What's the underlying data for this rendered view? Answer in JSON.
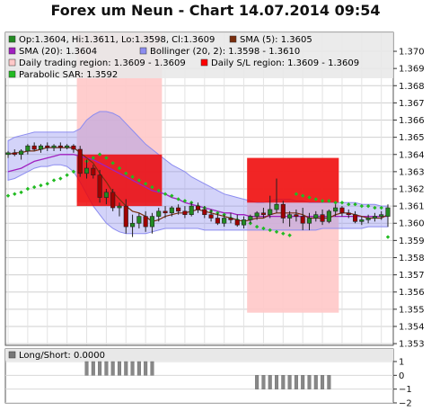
{
  "title": "Forex um Neun - Chart 14.07.2014 09:54",
  "chart_data": {
    "type": "candlestick",
    "ylim": [
      1.3529,
      1.3711
    ],
    "y_ticks": [
      "1.370",
      "1.369",
      "1.368",
      "1.367",
      "1.366",
      "1.365",
      "1.364",
      "1.363",
      "1.362",
      "1.361",
      "1.360",
      "1.359",
      "1.358",
      "1.357",
      "1.356",
      "1.355",
      "1.354",
      "1.353"
    ],
    "grid": true,
    "legend": [
      {
        "label": "Op:1.3604, Hi:1.3611, Lo:1.3598, Cl:1.3609",
        "color": "#228b22"
      },
      {
        "label": "SMA (5): 1.3605",
        "color": "#7a2e0e"
      },
      {
        "label": "SMA (20): 1.3604",
        "color": "#a020c0"
      },
      {
        "label": "Bollinger (20, 2): 1.3598 - 1.3610",
        "color": "#8c8cf0"
      },
      {
        "label": "Daily trading region: 1.3609 - 1.3609",
        "color": "#ffc8c8"
      },
      {
        "label": "Daily S/L region: 1.3609 - 1.3609",
        "color": "#ff0000"
      },
      {
        "label": "Parabolic SAR: 1.3592",
        "color": "#22bb22"
      }
    ],
    "candles": [
      {
        "o": 1.364,
        "h": 1.3642,
        "l": 1.3638,
        "c": 1.3641
      },
      {
        "o": 1.3641,
        "h": 1.3643,
        "l": 1.3639,
        "c": 1.364
      },
      {
        "o": 1.364,
        "h": 1.3643,
        "l": 1.3637,
        "c": 1.3642
      },
      {
        "o": 1.3642,
        "h": 1.3646,
        "l": 1.364,
        "c": 1.3645
      },
      {
        "o": 1.3645,
        "h": 1.3647,
        "l": 1.3642,
        "c": 1.3643
      },
      {
        "o": 1.3643,
        "h": 1.3646,
        "l": 1.3641,
        "c": 1.3645
      },
      {
        "o": 1.3645,
        "h": 1.3647,
        "l": 1.3642,
        "c": 1.3644
      },
      {
        "o": 1.3644,
        "h": 1.3646,
        "l": 1.3642,
        "c": 1.3645
      },
      {
        "o": 1.3645,
        "h": 1.3647,
        "l": 1.3642,
        "c": 1.3644
      },
      {
        "o": 1.3644,
        "h": 1.3646,
        "l": 1.3643,
        "c": 1.3645
      },
      {
        "o": 1.3645,
        "h": 1.3646,
        "l": 1.3641,
        "c": 1.3643
      },
      {
        "o": 1.3643,
        "h": 1.3645,
        "l": 1.3627,
        "c": 1.3629
      },
      {
        "o": 1.3629,
        "h": 1.3637,
        "l": 1.3626,
        "c": 1.3632
      },
      {
        "o": 1.3632,
        "h": 1.3634,
        "l": 1.3626,
        "c": 1.3628
      },
      {
        "o": 1.3628,
        "h": 1.3631,
        "l": 1.3612,
        "c": 1.3615
      },
      {
        "o": 1.3615,
        "h": 1.362,
        "l": 1.3611,
        "c": 1.3618
      },
      {
        "o": 1.3618,
        "h": 1.362,
        "l": 1.3607,
        "c": 1.3609
      },
      {
        "o": 1.3609,
        "h": 1.3612,
        "l": 1.3604,
        "c": 1.361
      },
      {
        "o": 1.361,
        "h": 1.3614,
        "l": 1.3594,
        "c": 1.3598
      },
      {
        "o": 1.3598,
        "h": 1.3605,
        "l": 1.3592,
        "c": 1.36
      },
      {
        "o": 1.36,
        "h": 1.3606,
        "l": 1.3597,
        "c": 1.3604
      },
      {
        "o": 1.3604,
        "h": 1.3607,
        "l": 1.3595,
        "c": 1.3598
      },
      {
        "o": 1.3598,
        "h": 1.3606,
        "l": 1.3594,
        "c": 1.3604
      },
      {
        "o": 1.3604,
        "h": 1.3609,
        "l": 1.3601,
        "c": 1.3607
      },
      {
        "o": 1.3607,
        "h": 1.361,
        "l": 1.3603,
        "c": 1.3606
      },
      {
        "o": 1.3606,
        "h": 1.361,
        "l": 1.3604,
        "c": 1.3609
      },
      {
        "o": 1.3609,
        "h": 1.3611,
        "l": 1.3605,
        "c": 1.3607
      },
      {
        "o": 1.3607,
        "h": 1.361,
        "l": 1.3603,
        "c": 1.3605
      },
      {
        "o": 1.3605,
        "h": 1.3612,
        "l": 1.3604,
        "c": 1.361
      },
      {
        "o": 1.361,
        "h": 1.3612,
        "l": 1.3606,
        "c": 1.3608
      },
      {
        "o": 1.3608,
        "h": 1.361,
        "l": 1.3603,
        "c": 1.3605
      },
      {
        "o": 1.3605,
        "h": 1.3608,
        "l": 1.3601,
        "c": 1.3603
      },
      {
        "o": 1.3603,
        "h": 1.3606,
        "l": 1.3599,
        "c": 1.36
      },
      {
        "o": 1.36,
        "h": 1.3605,
        "l": 1.3598,
        "c": 1.3603
      },
      {
        "o": 1.3603,
        "h": 1.3606,
        "l": 1.36,
        "c": 1.3602
      },
      {
        "o": 1.3602,
        "h": 1.3605,
        "l": 1.3598,
        "c": 1.3599
      },
      {
        "o": 1.3599,
        "h": 1.3604,
        "l": 1.3597,
        "c": 1.3602
      },
      {
        "o": 1.3602,
        "h": 1.3605,
        "l": 1.36,
        "c": 1.3604
      },
      {
        "o": 1.3604,
        "h": 1.3607,
        "l": 1.3602,
        "c": 1.3606
      },
      {
        "o": 1.3606,
        "h": 1.3609,
        "l": 1.3603,
        "c": 1.3605
      },
      {
        "o": 1.3605,
        "h": 1.3616,
        "l": 1.3603,
        "c": 1.3608
      },
      {
        "o": 1.3608,
        "h": 1.3626,
        "l": 1.3606,
        "c": 1.3611
      },
      {
        "o": 1.3611,
        "h": 1.3613,
        "l": 1.36,
        "c": 1.3603
      },
      {
        "o": 1.3603,
        "h": 1.3607,
        "l": 1.3598,
        "c": 1.3605
      },
      {
        "o": 1.3605,
        "h": 1.3608,
        "l": 1.3601,
        "c": 1.3604
      },
      {
        "o": 1.3604,
        "h": 1.3609,
        "l": 1.3596,
        "c": 1.36
      },
      {
        "o": 1.36,
        "h": 1.3606,
        "l": 1.3596,
        "c": 1.3603
      },
      {
        "o": 1.3603,
        "h": 1.3607,
        "l": 1.3601,
        "c": 1.3605
      },
      {
        "o": 1.3605,
        "h": 1.3608,
        "l": 1.3599,
        "c": 1.3601
      },
      {
        "o": 1.3601,
        "h": 1.3608,
        "l": 1.36,
        "c": 1.3607
      },
      {
        "o": 1.3607,
        "h": 1.3611,
        "l": 1.3604,
        "c": 1.3609
      },
      {
        "o": 1.3609,
        "h": 1.361,
        "l": 1.3604,
        "c": 1.3606
      },
      {
        "o": 1.3606,
        "h": 1.3608,
        "l": 1.3603,
        "c": 1.3605
      },
      {
        "o": 1.3605,
        "h": 1.3607,
        "l": 1.36,
        "c": 1.3601
      },
      {
        "o": 1.3601,
        "h": 1.3604,
        "l": 1.3599,
        "c": 1.3602
      },
      {
        "o": 1.3602,
        "h": 1.3605,
        "l": 1.36,
        "c": 1.3603
      },
      {
        "o": 1.3603,
        "h": 1.3606,
        "l": 1.3601,
        "c": 1.3604
      },
      {
        "o": 1.3604,
        "h": 1.3607,
        "l": 1.3602,
        "c": 1.3605
      },
      {
        "o": 1.3604,
        "h": 1.3611,
        "l": 1.3598,
        "c": 1.3609
      }
    ],
    "sma5": [
      1.364,
      1.3641,
      1.3641,
      1.3642,
      1.3642,
      1.3643,
      1.3644,
      1.3644,
      1.3644,
      1.3644,
      1.3644,
      1.3641,
      1.3638,
      1.3635,
      1.3629,
      1.3624,
      1.3618,
      1.3614,
      1.361,
      1.3607,
      1.3606,
      1.3604,
      1.3601,
      1.3602,
      1.3604,
      1.3605,
      1.3606,
      1.3606,
      1.3607,
      1.3608,
      1.3607,
      1.3606,
      1.3605,
      1.3604,
      1.3603,
      1.3602,
      1.3601,
      1.3602,
      1.3603,
      1.3603,
      1.3605,
      1.3606,
      1.3606,
      1.3606,
      1.3606,
      1.3605,
      1.3603,
      1.3603,
      1.3603,
      1.3603,
      1.3605,
      1.3606,
      1.3606,
      1.3605,
      1.3604,
      1.3603,
      1.3603,
      1.3603,
      1.3605
    ],
    "sma20": [
      1.363,
      1.3631,
      1.3632,
      1.3634,
      1.3636,
      1.3637,
      1.3638,
      1.3639,
      1.364,
      1.364,
      1.364,
      1.3639,
      1.3638,
      1.3637,
      1.3635,
      1.3633,
      1.3631,
      1.3629,
      1.3627,
      1.3625,
      1.3623,
      1.3621,
      1.3619,
      1.3618,
      1.3617,
      1.3615,
      1.3614,
      1.3612,
      1.3611,
      1.361,
      1.3609,
      1.3608,
      1.3607,
      1.3606,
      1.3606,
      1.3605,
      1.3605,
      1.3604,
      1.3604,
      1.3604,
      1.3604,
      1.3604,
      1.3604,
      1.3604,
      1.3604,
      1.3604,
      1.3604,
      1.3604,
      1.3604,
      1.3604,
      1.3604,
      1.3604,
      1.3604,
      1.3604,
      1.3604,
      1.3604,
      1.3604,
      1.3604,
      1.3604
    ],
    "boll_upper": [
      1.3648,
      1.365,
      1.3651,
      1.3652,
      1.3653,
      1.3653,
      1.3653,
      1.3653,
      1.3653,
      1.3653,
      1.3653,
      1.3655,
      1.366,
      1.3663,
      1.3665,
      1.3665,
      1.3664,
      1.3662,
      1.3658,
      1.3654,
      1.365,
      1.3646,
      1.3643,
      1.364,
      1.3637,
      1.3634,
      1.3632,
      1.363,
      1.3627,
      1.3625,
      1.3623,
      1.3621,
      1.3619,
      1.3617,
      1.3616,
      1.3615,
      1.3614,
      1.3613,
      1.3612,
      1.3612,
      1.3613,
      1.3614,
      1.3614,
      1.3614,
      1.3613,
      1.3613,
      1.3612,
      1.3612,
      1.3612,
      1.3612,
      1.3612,
      1.3612,
      1.3612,
      1.3612,
      1.3611,
      1.3611,
      1.3611,
      1.361,
      1.361
    ],
    "boll_lower": [
      1.3625,
      1.3626,
      1.3628,
      1.363,
      1.3632,
      1.3633,
      1.3633,
      1.3634,
      1.3634,
      1.3633,
      1.363,
      1.3624,
      1.3617,
      1.361,
      1.3605,
      1.36,
      1.3597,
      1.3595,
      1.3594,
      1.3594,
      1.3594,
      1.3594,
      1.3595,
      1.3596,
      1.3597,
      1.3597,
      1.3597,
      1.3597,
      1.3597,
      1.3597,
      1.3596,
      1.3596,
      1.3596,
      1.3596,
      1.3596,
      1.3596,
      1.3596,
      1.3596,
      1.3596,
      1.3596,
      1.3596,
      1.3596,
      1.3596,
      1.3596,
      1.3596,
      1.3596,
      1.3596,
      1.3596,
      1.3597,
      1.3597,
      1.3597,
      1.3597,
      1.3597,
      1.3597,
      1.3597,
      1.3598,
      1.3598,
      1.3598,
      1.3598
    ],
    "sar": [
      1.3616,
      1.3617,
      1.3618,
      1.362,
      1.3621,
      1.3622,
      1.3623,
      1.3625,
      1.3626,
      1.3628,
      1.363,
      1.3633,
      1.3636,
      1.3638,
      1.364,
      1.3638,
      1.3635,
      1.3632,
      1.3629,
      1.3627,
      1.3625,
      1.3623,
      1.3621,
      1.3619,
      1.3617,
      1.3616,
      1.3614,
      1.3613,
      1.3612,
      1.361,
      1.3609,
      1.3607,
      1.3606,
      1.3605,
      1.3603,
      1.3602,
      1.3601,
      1.36,
      1.3598,
      1.3597,
      1.3596,
      1.3595,
      1.3594,
      1.3593,
      1.3617,
      1.3616,
      1.3615,
      1.3614,
      1.3613,
      1.3613,
      1.3612,
      1.3612,
      1.3611,
      1.3611,
      1.361,
      1.361,
      1.3609,
      1.3609,
      1.3592
    ],
    "trading_regions": [
      {
        "from": 11,
        "to": 23,
        "high": 1.3711,
        "low": 1.3612
      },
      {
        "from": 37,
        "to": 50,
        "high": 1.3638,
        "low": 1.3548
      }
    ],
    "sl_regions": [
      {
        "from": 11,
        "to": 23,
        "high": 1.364,
        "low": 1.361
      },
      {
        "from": 37,
        "to": 50,
        "high": 1.3638,
        "low": 1.3612
      }
    ],
    "indicator": {
      "label": "Long/Short: 0.0000",
      "ylim": [
        -2,
        1
      ],
      "y_ticks": [
        "1",
        "0",
        "−1",
        "−2"
      ],
      "bars": [
        {
          "from": 12,
          "to": 22,
          "value": 1
        },
        {
          "from": 38,
          "to": 49,
          "value": -1
        }
      ]
    }
  }
}
